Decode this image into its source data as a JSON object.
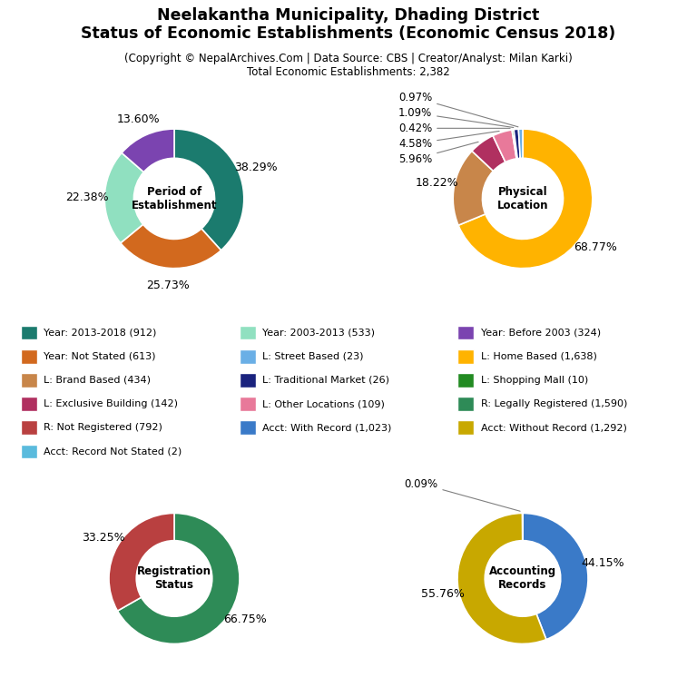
{
  "title": "Neelakantha Municipality, Dhading District\nStatus of Economic Establishments (Economic Census 2018)",
  "subtitle": "(Copyright © NepalArchives.Com | Data Source: CBS | Creator/Analyst: Milan Karki)\nTotal Economic Establishments: 2,382",
  "series": [
    {
      "name": "Year: 2013-2018 (912)",
      "color": "#1B7B6E"
    },
    {
      "name": "Year: 2003-2013 (533)",
      "color": "#90E0C0"
    },
    {
      "name": "Year: Before 2003 (324)",
      "color": "#7B44B0"
    },
    {
      "name": "Year: Not Stated (613)",
      "color": "#D2691E"
    },
    {
      "name": "L: Street Based (23)",
      "color": "#6AAFE6"
    },
    {
      "name": "L: Home Based (1,638)",
      "color": "#FFB300"
    },
    {
      "name": "L: Brand Based (434)",
      "color": "#C8864A"
    },
    {
      "name": "L: Traditional Market (26)",
      "color": "#1A237E"
    },
    {
      "name": "L: Shopping Mall (10)",
      "color": "#228B22"
    },
    {
      "name": "L: Exclusive Building (142)",
      "color": "#B03060"
    },
    {
      "name": "L: Other Locations (109)",
      "color": "#E8799A"
    },
    {
      "name": "R: Legally Registered (1,590)",
      "color": "#2E8B57"
    },
    {
      "name": "R: Not Registered (792)",
      "color": "#B94040"
    },
    {
      "name": "Acct: With Record (1,023)",
      "color": "#3A7AC8"
    },
    {
      "name": "Acct: Without Record (1,292)",
      "color": "#C8A800"
    },
    {
      "name": "Acct: Record Not Stated (2)",
      "color": "#5ABBDD"
    }
  ],
  "chart_data": [
    {
      "type": "pie",
      "title": "Period of\nEstablishment",
      "values": [
        38.29,
        25.73,
        22.38,
        13.6
      ],
      "value_labels": [
        "38.29%",
        "25.73%",
        "22.38%",
        "13.60%"
      ],
      "colors": [
        "#1B7B6E",
        "#D2691E",
        "#90E0C0",
        "#7B44B0"
      ]
    },
    {
      "type": "pie",
      "title": "Physical\nLocation",
      "values": [
        68.77,
        18.22,
        5.96,
        4.58,
        0.42,
        1.09,
        0.97
      ],
      "value_labels": [
        "68.77%",
        "18.22%",
        "5.96%",
        "4.58%",
        "0.42%",
        "1.09%",
        "0.97%"
      ],
      "colors": [
        "#FFB300",
        "#C8864A",
        "#B03060",
        "#E8799A",
        "#228B22",
        "#1A237E",
        "#6AAFE6"
      ]
    },
    {
      "type": "pie",
      "title": "Registration\nStatus",
      "values": [
        66.75,
        33.25
      ],
      "value_labels": [
        "66.75%",
        "33.25%"
      ],
      "colors": [
        "#2E8B57",
        "#B94040"
      ]
    },
    {
      "type": "pie",
      "title": "Accounting\nRecords",
      "values": [
        44.15,
        55.76,
        0.09
      ],
      "value_labels": [
        "44.15%",
        "55.76%",
        "0.09%"
      ],
      "colors": [
        "#3A7AC8",
        "#C8A800",
        "#5ABBDD"
      ]
    }
  ]
}
